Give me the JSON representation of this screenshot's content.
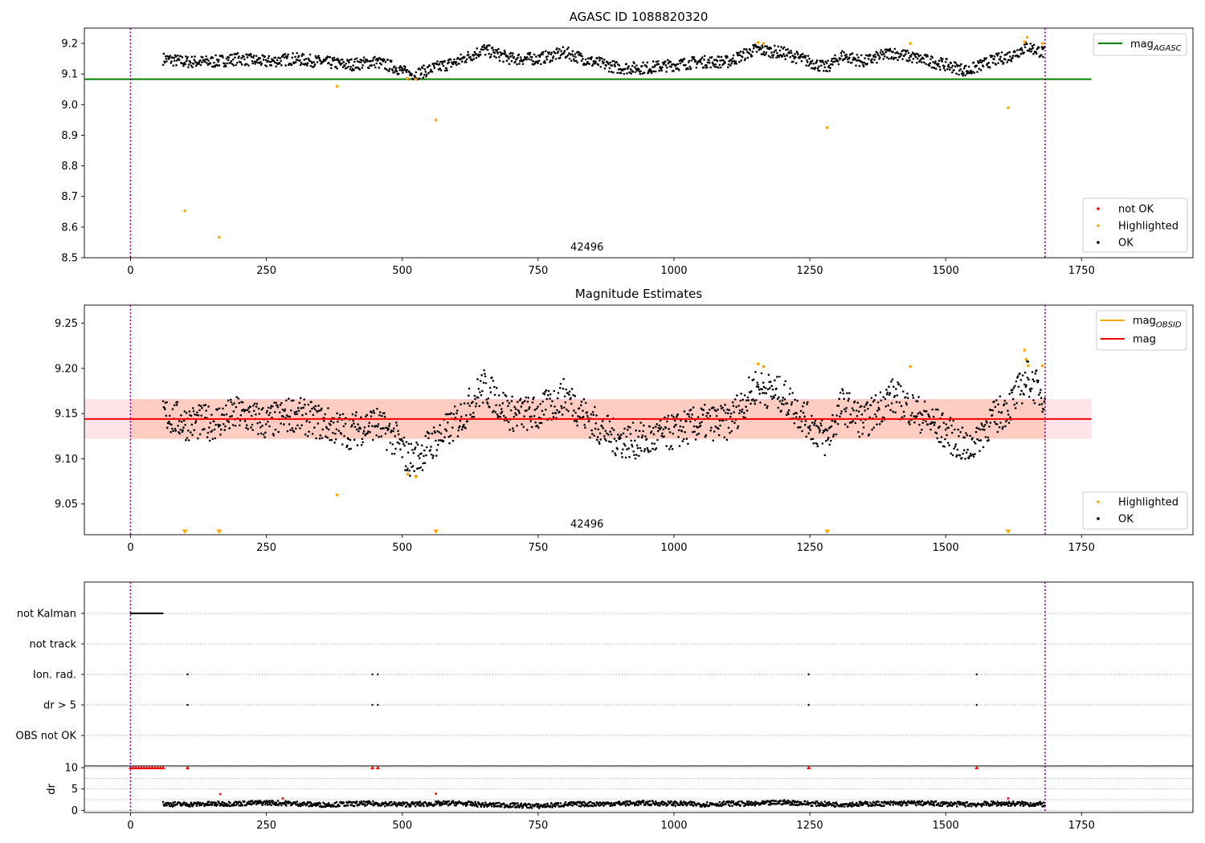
{
  "chart_data": [
    {
      "type": "scatter",
      "title": "AGASC ID 1088820320",
      "annotation": "42496",
      "xlim": [
        -85,
        1955
      ],
      "ylim": [
        8.5,
        9.25
      ],
      "xticks": [
        0,
        250,
        500,
        750,
        1000,
        1250,
        1500,
        1750
      ],
      "yticks": [
        8.5,
        8.6,
        8.7,
        8.8,
        8.9,
        9.0,
        9.1,
        9.2
      ],
      "ytick_labels": [
        "8.5",
        "8.6",
        "8.7",
        "8.8",
        "8.9",
        "9.0",
        "9.1",
        "9.2"
      ],
      "vlines": [
        0,
        1683
      ],
      "line_legend": {
        "placement": "upper right",
        "entries": [
          {
            "base": "mag",
            "sub": "AGASC",
            "color": "#008000"
          }
        ]
      },
      "marker_legend": {
        "placement": "lower right",
        "entries": [
          {
            "label": "not OK",
            "color": "#ff0000"
          },
          {
            "label": "Highlighted",
            "color": "#ffa500"
          },
          {
            "label": "OK",
            "color": "#000000"
          }
        ]
      },
      "series": [
        {
          "name": "mag_AGASC",
          "kind": "hline",
          "y": 9.083,
          "x": [
            -85,
            1768
          ],
          "color": "#008000"
        },
        {
          "name": "OK",
          "kind": "points",
          "color": "#000000",
          "x": [
            60,
            100,
            150,
            200,
            250,
            300,
            350,
            400,
            450,
            490,
            510,
            525,
            560,
            600,
            650,
            700,
            750,
            800,
            850,
            900,
            950,
            1000,
            1050,
            1100,
            1150,
            1200,
            1250,
            1280,
            1310,
            1350,
            1400,
            1450,
            1500,
            1540,
            1580,
            1620,
            1650,
            1680
          ],
          "y": [
            9.15,
            9.14,
            9.14,
            9.15,
            9.14,
            9.15,
            9.14,
            9.13,
            9.14,
            9.12,
            9.1,
            9.1,
            9.12,
            9.14,
            9.18,
            9.15,
            9.15,
            9.17,
            9.14,
            9.12,
            9.12,
            9.13,
            9.14,
            9.14,
            9.18,
            9.17,
            9.14,
            9.12,
            9.16,
            9.14,
            9.17,
            9.15,
            9.13,
            9.11,
            9.14,
            9.16,
            9.19,
            9.17
          ]
        },
        {
          "name": "Highlighted",
          "kind": "points",
          "color": "#ffa500",
          "x": [
            100,
            163,
            380,
            510,
            525,
            562,
            1155,
            1165,
            1282,
            1435,
            1615,
            1645,
            1650,
            1678
          ],
          "y": [
            8.653,
            8.567,
            9.06,
            9.085,
            9.083,
            8.95,
            9.203,
            9.2,
            8.925,
            9.2,
            8.99,
            9.205,
            9.22,
            9.2
          ]
        }
      ]
    },
    {
      "type": "scatter",
      "title": "Magnitude Estimates",
      "annotation": "42496",
      "xlim": [
        -85,
        1955
      ],
      "ylim": [
        9.016,
        9.27
      ],
      "xticks": [
        0,
        250,
        500,
        750,
        1000,
        1250,
        1500,
        1750
      ],
      "yticks": [
        9.05,
        9.1,
        9.15,
        9.2,
        9.25
      ],
      "ytick_labels": [
        "9.05",
        "9.10",
        "9.15",
        "9.20",
        "9.25"
      ],
      "vlines": [
        0,
        1683
      ],
      "band": {
        "y0": 9.122,
        "y1": 9.166,
        "x": [
          -85,
          1768
        ]
      },
      "line_legend": {
        "placement": "upper right",
        "entries": [
          {
            "base": "mag",
            "sub": "OBSID",
            "color": "#ffa500"
          },
          {
            "base": "mag",
            "sub": "",
            "color": "#ff0000"
          }
        ]
      },
      "marker_legend": {
        "placement": "lower right",
        "entries": [
          {
            "label": "Highlighted",
            "color": "#ffa500"
          },
          {
            "label": "OK",
            "color": "#000000"
          }
        ]
      },
      "series": [
        {
          "name": "mag",
          "kind": "hline",
          "y": 9.144,
          "x": [
            -85,
            1768
          ],
          "color": "#ff0000"
        },
        {
          "name": "OK",
          "kind": "points",
          "color": "#000000",
          "x": [
            60,
            100,
            150,
            200,
            250,
            300,
            350,
            400,
            450,
            490,
            510,
            525,
            560,
            600,
            650,
            700,
            750,
            800,
            850,
            900,
            950,
            1000,
            1050,
            1100,
            1150,
            1200,
            1250,
            1280,
            1310,
            1350,
            1400,
            1450,
            1500,
            1540,
            1580,
            1620,
            1650,
            1680
          ],
          "y": [
            9.15,
            9.14,
            9.14,
            9.15,
            9.14,
            9.15,
            9.14,
            9.13,
            9.14,
            9.12,
            9.1,
            9.1,
            9.12,
            9.14,
            9.18,
            9.15,
            9.15,
            9.17,
            9.14,
            9.12,
            9.12,
            9.13,
            9.14,
            9.14,
            9.18,
            9.17,
            9.14,
            9.12,
            9.16,
            9.14,
            9.17,
            9.15,
            9.13,
            9.11,
            9.14,
            9.16,
            9.19,
            9.17
          ]
        },
        {
          "name": "Highlighted",
          "kind": "points",
          "color": "#ffa500",
          "x": [
            380,
            510,
            525,
            1155,
            1165,
            1435,
            1645,
            1648,
            1652,
            1678
          ],
          "y": [
            9.06,
            9.083,
            9.08,
            9.205,
            9.202,
            9.202,
            9.22,
            9.21,
            9.203,
            9.203
          ]
        },
        {
          "name": "Highlighted (below axis)",
          "kind": "down-markers",
          "color": "#ffa500",
          "x": [
            100,
            163,
            562,
            1282,
            1615
          ]
        }
      ]
    },
    {
      "type": "scatter",
      "categories": [
        "not Kalman",
        "not track",
        "Ion. rad.",
        "dr > 5",
        "OBS not OK"
      ],
      "xlim": [
        -85,
        1955
      ],
      "xticks": [
        0,
        250,
        500,
        750,
        1000,
        1250,
        1500,
        1750
      ],
      "vlines": [
        0,
        1683
      ],
      "flags": [
        {
          "category": "not Kalman",
          "x_range": [
            0,
            60
          ]
        },
        {
          "category": "Ion. rad.",
          "x": [
            105,
            445,
            455,
            1248,
            1557
          ]
        },
        {
          "category": "dr > 5",
          "x": [
            105,
            445,
            455,
            1248,
            1557
          ]
        }
      ]
    },
    {
      "type": "scatter",
      "ylabel": "dr",
      "ylim": [
        -0.5,
        10.4
      ],
      "xlim": [
        -85,
        1955
      ],
      "xticks": [
        0,
        250,
        500,
        750,
        1000,
        1250,
        1500,
        1750
      ],
      "yticks": [
        0,
        5,
        10
      ],
      "ytick_labels": [
        "0",
        "5",
        "10"
      ],
      "vlines": [
        0,
        1683
      ],
      "series": [
        {
          "name": "dr OK",
          "kind": "points",
          "color": "#000000",
          "x": [
            60,
            100,
            150,
            200,
            250,
            300,
            350,
            400,
            450,
            500,
            550,
            600,
            650,
            700,
            750,
            800,
            850,
            900,
            950,
            1000,
            1050,
            1100,
            1150,
            1200,
            1250,
            1300,
            1350,
            1400,
            1450,
            1500,
            1550,
            1600,
            1650,
            1680
          ],
          "y": [
            1.5,
            1.4,
            1.5,
            1.6,
            1.8,
            1.6,
            1.3,
            1.5,
            1.6,
            1.4,
            1.5,
            1.7,
            1.3,
            1.2,
            1.0,
            1.4,
            1.5,
            1.6,
            1.7,
            1.6,
            1.4,
            1.6,
            1.5,
            1.9,
            1.6,
            1.4,
            1.5,
            1.6,
            1.7,
            1.5,
            1.4,
            1.6,
            1.5,
            1.4
          ]
        },
        {
          "name": "dr not OK (>=10)",
          "kind": "points",
          "color": "#ff0000",
          "x": [
            0,
            5,
            10,
            15,
            20,
            25,
            30,
            35,
            40,
            45,
            50,
            55,
            60,
            105,
            445,
            455,
            1248,
            1557
          ],
          "y": [
            10,
            10,
            10,
            10,
            10,
            10,
            10,
            10,
            10,
            10,
            10,
            10,
            10,
            10,
            10,
            10,
            10,
            10
          ]
        },
        {
          "name": "dr not OK",
          "kind": "points",
          "color": "#ff0000",
          "x": [
            165,
            280,
            562,
            1615
          ],
          "y": [
            3.8,
            2.8,
            3.9,
            2.8
          ]
        }
      ]
    }
  ]
}
